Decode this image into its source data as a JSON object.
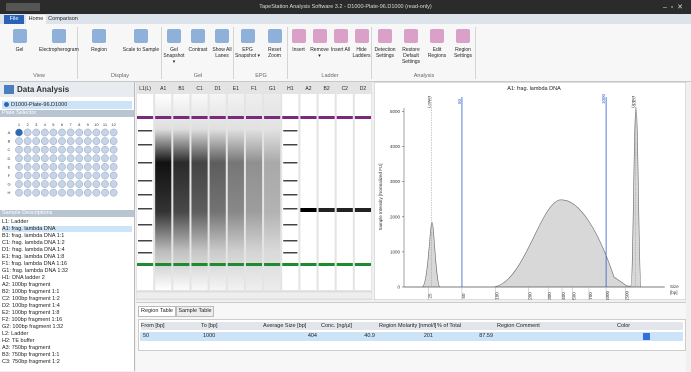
{
  "title_bar": {
    "title": "TapeStation Analysis Software 3.2 - D1000-Plate-96.D1000 (read-only)"
  },
  "ribbon": {
    "tabs": [
      "File",
      "Home",
      "Comparison"
    ],
    "groups": [
      {
        "label": "View",
        "buttons": [
          "Gel",
          "Electropherogram"
        ]
      },
      {
        "label": "Display",
        "buttons": [
          "Region",
          "Scale to Sample"
        ]
      },
      {
        "label": "Gel",
        "buttons": [
          "Gel Snapshot ▾",
          "Contrast",
          "Show All Lanes"
        ]
      },
      {
        "label": "EPG",
        "buttons": [
          "EPG Snapshot ▾",
          "Reset Zoom"
        ]
      },
      {
        "label": "Ladder",
        "buttons": [
          "Insert",
          "Remove ▾",
          "Insert All",
          "Hide Ladders"
        ]
      },
      {
        "label": "Analysis",
        "buttons": [
          "Detection Settings",
          "Restore Default Settings",
          "Edit Regions",
          "Region Settings"
        ]
      }
    ]
  },
  "left_panel": {
    "title": "Data Analysis",
    "file": "D1000-Plate-96.D1000",
    "plate_label": "Plate Selector",
    "plate_cols": [
      "1",
      "2",
      "3",
      "4",
      "5",
      "6",
      "7",
      "8",
      "9",
      "10",
      "11",
      "12"
    ],
    "plate_rows": [
      "A",
      "B",
      "C",
      "D",
      "E",
      "F",
      "G",
      "H"
    ],
    "samples_label": "Sample Descriptions",
    "samples": [
      "L1: Ladder",
      "A1: frag. lambda DNA",
      "B1: frag. lambda DNA 1:1",
      "C1: frag. lambda DNA 1:2",
      "D1: frag. lambda DNA 1:4",
      "E1: frag. lambda DNA 1:8",
      "F1: frag. lambda DNA 1:16",
      "G1: frag. lambda DNA 1:32",
      "H1: DNA ladder 2",
      "A2: 100bp fragment",
      "B2: 100bp fragment 1:1",
      "C2: 100bp fragment 1:2",
      "D2: 100bp fragment 1:4",
      "E2: 100bp fragment 1:8",
      "F2: 100bp fragment 1:16",
      "G2: 100bp fragment 1:32",
      "L2: Ladder",
      "H2: TE buffer",
      "A3: 750bp fragment",
      "B3: 750bp fragment 1:1",
      "C3: 750bp fragment 1:2"
    ]
  },
  "gel": {
    "lanes": [
      "L1(L)",
      "A1",
      "B1",
      "C1",
      "D1",
      "E1",
      "F1",
      "G1",
      "H1",
      "A2",
      "B2",
      "C2",
      "D2"
    ]
  },
  "electropherogram": {
    "title": "A1: frag. lambda DNA",
    "y_label": "Sample Intensity [Normalized FU]",
    "x_label": [
      "Size",
      "[bp]"
    ],
    "ylim": [
      0,
      5100
    ],
    "yticks": [
      0,
      1000,
      2000,
      3000,
      4000,
      5000
    ],
    "xscale": "log",
    "xlim": [
      15,
      3400
    ],
    "xticks": [
      25,
      50,
      100,
      200,
      300,
      400,
      500,
      700,
      1000,
      1500
    ],
    "markers": [
      "Lower",
      "Upper"
    ]
  },
  "bottom": {
    "tabs": [
      "Region Table",
      "Sample Table"
    ],
    "table": {
      "headers": [
        "From [bp]",
        "To [bp]",
        "Average Size [bp]",
        "Conc. [ng/µl]",
        "Region Molarity [nmol/l]",
        "% of Total",
        "Region Comment",
        "Color"
      ],
      "rows": [
        [
          "50",
          "1000",
          "404",
          "40.9",
          "201",
          "87.59",
          "",
          ""
        ]
      ]
    }
  }
}
